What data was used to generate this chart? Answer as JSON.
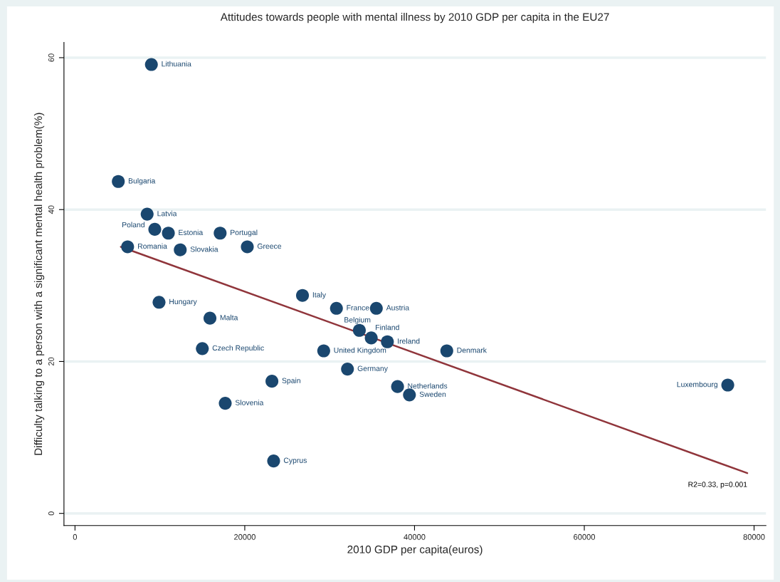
{
  "chart_data": {
    "type": "scatter",
    "title": "Attitudes towards people with mental illness by 2010 GDP per capita in the EU27",
    "xlabel": "2010 GDP per capita(euros)",
    "ylabel": "Difficulty talking to a person with a significant mental health problem(%)",
    "xlim": [
      -1300,
      81400
    ],
    "ylim": [
      -1.6,
      62
    ],
    "xticks": [
      0,
      20000,
      40000,
      60000,
      80000
    ],
    "yticks": [
      0,
      20,
      40,
      60
    ],
    "grid": "y",
    "legend": false,
    "series": [
      {
        "marker": "circle",
        "color": "#1a476f",
        "x": [
          9000,
          5100,
          8500,
          9400,
          11000,
          17100,
          6200,
          12400,
          20300,
          9900,
          15900,
          15000,
          26800,
          30800,
          35500,
          33500,
          34900,
          36800,
          29300,
          43800,
          32100,
          23200,
          38000,
          39400,
          76900,
          17700,
          23400
        ],
        "values": [
          59.1,
          43.7,
          39.4,
          37.4,
          36.9,
          36.9,
          35.1,
          34.7,
          35.1,
          27.8,
          25.7,
          21.7,
          28.7,
          27.0,
          27.0,
          24.1,
          23.1,
          22.6,
          21.4,
          21.4,
          19.0,
          17.4,
          16.7,
          15.6,
          16.9,
          14.5,
          6.9
        ]
      },
      {
        "type": "line",
        "marker": "none",
        "color": "#90353b",
        "x": [
          5400,
          79200
        ],
        "values": [
          35.1,
          5.3
        ]
      }
    ],
    "annotations": [
      {
        "text": "Lithuania",
        "x": 9000,
        "y": 59.1
      },
      {
        "text": "Bulgaria",
        "x": 5100,
        "y": 43.7
      },
      {
        "text": "Latvia",
        "x": 8500,
        "y": 39.4
      },
      {
        "text": "Poland",
        "x": 9400,
        "y": 37.4
      },
      {
        "text": "Estonia",
        "x": 11000,
        "y": 36.9
      },
      {
        "text": "Portugal",
        "x": 17100,
        "y": 36.9
      },
      {
        "text": "Romania",
        "x": 6200,
        "y": 35.1
      },
      {
        "text": "Slovakia",
        "x": 12400,
        "y": 34.7
      },
      {
        "text": "Greece",
        "x": 20300,
        "y": 35.1
      },
      {
        "text": "Hungary",
        "x": 9900,
        "y": 27.8
      },
      {
        "text": "Malta",
        "x": 15900,
        "y": 25.7
      },
      {
        "text": "Czech Republic",
        "x": 15000,
        "y": 21.7
      },
      {
        "text": "Italy",
        "x": 26800,
        "y": 28.7
      },
      {
        "text": "France",
        "x": 30800,
        "y": 27.0
      },
      {
        "text": "Austria",
        "x": 35500,
        "y": 27.0
      },
      {
        "text": "Belgium",
        "x": 33500,
        "y": 24.1
      },
      {
        "text": "Finland",
        "x": 34900,
        "y": 23.1
      },
      {
        "text": "Ireland",
        "x": 36800,
        "y": 22.6
      },
      {
        "text": "United Kingdom",
        "x": 29300,
        "y": 21.4
      },
      {
        "text": "Denmark",
        "x": 43800,
        "y": 21.4
      },
      {
        "text": "Germany",
        "x": 32100,
        "y": 19.0
      },
      {
        "text": "Spain",
        "x": 23200,
        "y": 17.4
      },
      {
        "text": "Netherlands",
        "x": 38000,
        "y": 16.7
      },
      {
        "text": "Sweden",
        "x": 39400,
        "y": 15.6
      },
      {
        "text": "Luxembourg",
        "x": 76900,
        "y": 16.9
      },
      {
        "text": "Slovenia",
        "x": 17700,
        "y": 14.5
      },
      {
        "text": "Cyprus",
        "x": 23400,
        "y": 6.9
      },
      {
        "text": "R2=0.33, p=0.001",
        "x": 79200,
        "y": 5.3
      }
    ]
  }
}
